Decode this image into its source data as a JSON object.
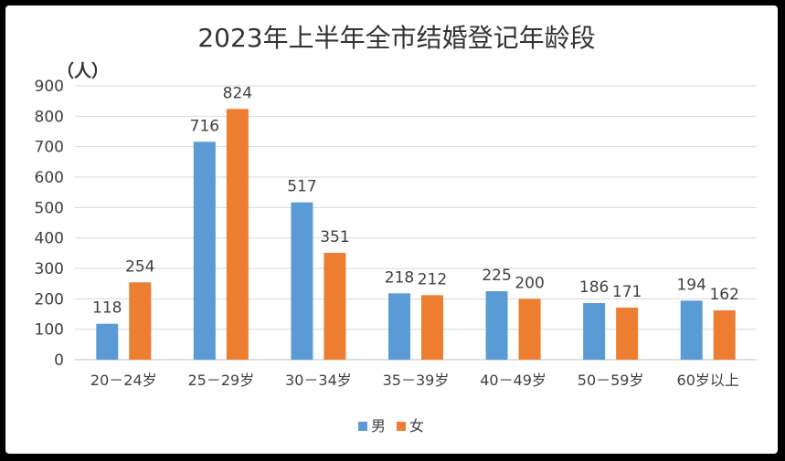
{
  "chart_data": {
    "type": "bar",
    "title": "2023年上半年全市结婚登记年龄段",
    "unit_label": "（人）",
    "categories": [
      "20－24岁",
      "25－29岁",
      "30－34岁",
      "35－39岁",
      "40－49岁",
      "50－59岁",
      "60岁以上"
    ],
    "series": [
      {
        "name": "男",
        "values": [
          118,
          716,
          517,
          218,
          225,
          186,
          194
        ],
        "color": "#5B9BD5"
      },
      {
        "name": "女",
        "values": [
          254,
          824,
          351,
          212,
          200,
          171,
          162
        ],
        "color": "#ED7D31"
      }
    ],
    "ylim": [
      0,
      900
    ],
    "yticks": [
      0,
      100,
      200,
      300,
      400,
      500,
      600,
      700,
      800,
      900
    ],
    "grid": true,
    "legend_position": "bottom"
  }
}
